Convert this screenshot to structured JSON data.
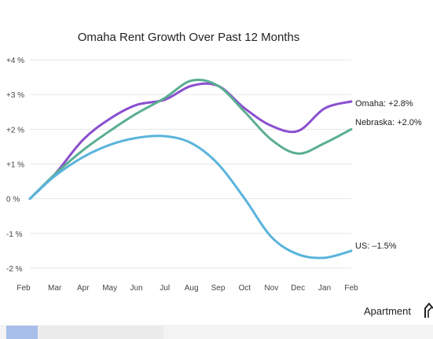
{
  "chart_data": {
    "type": "line",
    "title": "Omaha Rent Growth Over Past 12 Months",
    "categories": [
      "Feb",
      "Mar",
      "Apr",
      "May",
      "Jun",
      "Jul",
      "Aug",
      "Sep",
      "Oct",
      "Nov",
      "Dec",
      "Jan",
      "Feb"
    ],
    "x_positions": [
      0,
      0.7,
      1.5,
      2.25,
      3,
      3.8,
      4.55,
      5.3,
      6.05,
      6.8,
      7.55,
      8.3,
      9.05
    ],
    "y_ticks": [
      {
        "value": 4,
        "label": "+4 %"
      },
      {
        "value": 3,
        "label": "+3 %"
      },
      {
        "value": 2,
        "label": "+2 %"
      },
      {
        "value": 1,
        "label": "+1 %"
      },
      {
        "value": 0,
        "label": "0 %"
      },
      {
        "value": -1,
        "label": "-1 %"
      },
      {
        "value": -2,
        "label": "-2 %"
      }
    ],
    "ylim": [
      -2,
      4
    ],
    "grid": true,
    "series": [
      {
        "name": "Omaha",
        "end_label": "Omaha: +2.8%",
        "color": "#8a4fcf",
        "values": [
          0,
          0.7,
          1.7,
          2.3,
          2.7,
          2.85,
          3.25,
          3.25,
          2.6,
          2.1,
          1.95,
          2.6,
          2.8
        ]
      },
      {
        "name": "Nebraska",
        "end_label": "Nebraska: +2.0%",
        "color": "#5aae92",
        "values": [
          0,
          0.7,
          1.4,
          1.95,
          2.45,
          2.9,
          3.4,
          3.25,
          2.5,
          1.7,
          1.3,
          1.6,
          2.0
        ]
      },
      {
        "name": "US",
        "end_label": "US: –1.5%",
        "color": "#5ab4dc",
        "values": [
          0,
          0.65,
          1.2,
          1.55,
          1.75,
          1.8,
          1.6,
          1.0,
          0.0,
          -1.1,
          -1.6,
          -1.7,
          -1.5
        ]
      }
    ]
  },
  "brand": {
    "name": "Apartment"
  }
}
